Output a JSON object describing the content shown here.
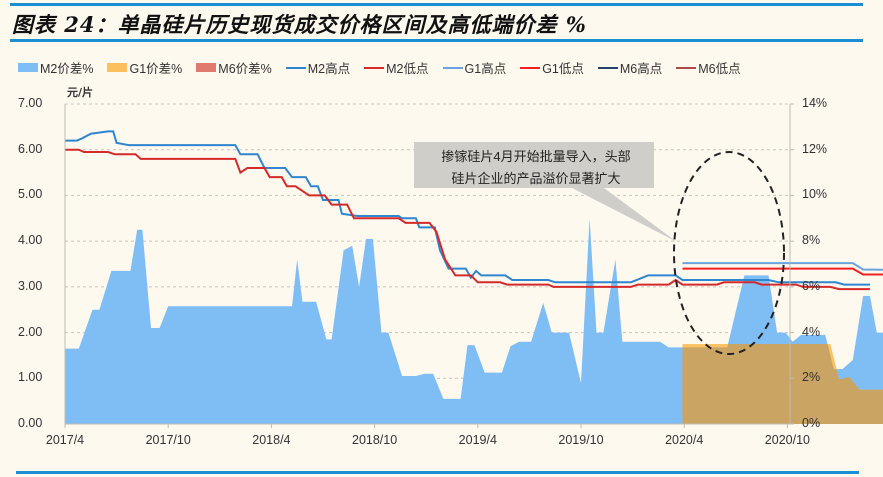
{
  "title": "图表 24：单晶硅片历史现货成交价格区间及高低端价差 %",
  "unit_label": "元/片",
  "callout": {
    "line1": "掺镓硅片4月开始批量导入，头部",
    "line2": "硅片企业的产品溢价显著扩大"
  },
  "legend": [
    {
      "label": "M2价差%",
      "type": "area",
      "color": "#7fbdf5"
    },
    {
      "label": "G1价差%",
      "type": "area",
      "color": "#fbbf5e"
    },
    {
      "label": "M6价差%",
      "type": "area",
      "color": "#e07a6e"
    },
    {
      "label": "M2高点",
      "type": "line",
      "color": "#2f86d0"
    },
    {
      "label": "M2低点",
      "type": "line",
      "color": "#d42a2a"
    },
    {
      "label": "G1高点",
      "type": "line",
      "color": "#6aa3de"
    },
    {
      "label": "G1低点",
      "type": "line",
      "color": "#f51f1f"
    },
    {
      "label": "M6高点",
      "type": "line",
      "color": "#23436e"
    },
    {
      "label": "M6低点",
      "type": "line",
      "color": "#b04848"
    }
  ],
  "left_axis": [
    "7.00",
    "6.00",
    "5.00",
    "4.00",
    "3.00",
    "2.00",
    "1.00",
    "0.00"
  ],
  "right_axis": [
    "14%",
    "12%",
    "10%",
    "8%",
    "6%",
    "4%",
    "2%",
    "0%"
  ],
  "x_axis": [
    "2017/4",
    "2017/10",
    "2018/4",
    "2018/10",
    "2019/4",
    "2019/10",
    "2020/4",
    "2020/10"
  ],
  "chart_data": {
    "type": "line+area",
    "title": "单晶硅片历史现货成交价格区间及高低端价差 %",
    "ylabel_left": "元/片",
    "ylabel_right": "%",
    "ylim_left": [
      0,
      7
    ],
    "ylim_right": [
      0,
      14
    ],
    "grid": true,
    "legend_position": "top",
    "x_ticks": [
      "2017/4",
      "2017/10",
      "2018/4",
      "2018/10",
      "2019/4",
      "2019/10",
      "2020/4",
      "2020/10"
    ],
    "x_unit": "months since 2017/4",
    "series": [
      {
        "name": "M2高点",
        "axis": "left",
        "type": "line",
        "points": [
          [
            0,
            6.2
          ],
          [
            0.7,
            6.2
          ],
          [
            1,
            6.25
          ],
          [
            1.5,
            6.35
          ],
          [
            2.5,
            6.4
          ],
          [
            2.8,
            6.4
          ],
          [
            3,
            6.15
          ],
          [
            3.7,
            6.1
          ],
          [
            9.9,
            6.1
          ],
          [
            10.2,
            5.9
          ],
          [
            11.2,
            5.9
          ],
          [
            11.6,
            5.6
          ],
          [
            12.8,
            5.6
          ],
          [
            13.2,
            5.4
          ],
          [
            14,
            5.4
          ],
          [
            14.3,
            5.2
          ],
          [
            14.7,
            5.2
          ],
          [
            15,
            4.9
          ],
          [
            15.9,
            4.9
          ],
          [
            16.1,
            4.6
          ],
          [
            17,
            4.55
          ],
          [
            19.4,
            4.55
          ],
          [
            19.6,
            4.5
          ],
          [
            20.4,
            4.5
          ],
          [
            20.6,
            4.3
          ],
          [
            21.5,
            4.3
          ],
          [
            21.8,
            3.8
          ],
          [
            22.3,
            3.4
          ],
          [
            23.3,
            3.4
          ],
          [
            23.6,
            3.2
          ],
          [
            23.9,
            3.35
          ],
          [
            24.2,
            3.25
          ],
          [
            25.6,
            3.25
          ],
          [
            26,
            3.15
          ],
          [
            28.1,
            3.15
          ],
          [
            28.5,
            3.1
          ],
          [
            32.9,
            3.1
          ],
          [
            33.9,
            3.25
          ],
          [
            35.5,
            3.25
          ],
          [
            35.9,
            3.15
          ],
          [
            40.9,
            3.15
          ],
          [
            41.5,
            3.1
          ],
          [
            44.8,
            3.1
          ],
          [
            45.3,
            3.05
          ],
          [
            46.8,
            3.05
          ]
        ]
      },
      {
        "name": "M2低点",
        "axis": "left",
        "type": "line",
        "points": [
          [
            0,
            6.0
          ],
          [
            0.8,
            6.0
          ],
          [
            1.1,
            5.95
          ],
          [
            2.5,
            5.95
          ],
          [
            2.9,
            5.9
          ],
          [
            4.1,
            5.9
          ],
          [
            4.4,
            5.8
          ],
          [
            9.9,
            5.8
          ],
          [
            10.2,
            5.5
          ],
          [
            10.6,
            5.6
          ],
          [
            11.6,
            5.6
          ],
          [
            11.9,
            5.4
          ],
          [
            12.6,
            5.4
          ],
          [
            12.9,
            5.2
          ],
          [
            13.4,
            5.2
          ],
          [
            13.8,
            5.1
          ],
          [
            14.2,
            5.0
          ],
          [
            15.1,
            5.0
          ],
          [
            15.5,
            4.8
          ],
          [
            16.4,
            4.8
          ],
          [
            16.8,
            4.5
          ],
          [
            19.4,
            4.5
          ],
          [
            19.8,
            4.4
          ],
          [
            21.2,
            4.4
          ],
          [
            21.6,
            4.2
          ],
          [
            22.1,
            3.6
          ],
          [
            22.7,
            3.25
          ],
          [
            23.6,
            3.25
          ],
          [
            24,
            3.1
          ],
          [
            25.3,
            3.1
          ],
          [
            25.7,
            3.05
          ],
          [
            28.1,
            3.05
          ],
          [
            28.4,
            3.0
          ],
          [
            32.9,
            3.0
          ],
          [
            33.3,
            3.05
          ],
          [
            35.1,
            3.05
          ],
          [
            35.5,
            3.15
          ],
          [
            35.9,
            3.05
          ],
          [
            37.9,
            3.05
          ],
          [
            38.3,
            3.1
          ],
          [
            40.1,
            3.1
          ],
          [
            40.5,
            3.05
          ],
          [
            42.5,
            3.05
          ],
          [
            42.9,
            3.0
          ],
          [
            44.5,
            3.0
          ],
          [
            45,
            2.95
          ],
          [
            46.8,
            2.95
          ]
        ]
      },
      {
        "name": "G1高点",
        "axis": "left",
        "type": "line",
        "points": [
          [
            35.9,
            3.52
          ],
          [
            45.8,
            3.52
          ],
          [
            46.4,
            3.38
          ],
          [
            48,
            3.37
          ],
          [
            58.5,
            3.36
          ],
          [
            59,
            3.3
          ],
          [
            59.6,
            3.2
          ],
          [
            60.2,
            2.9
          ],
          [
            61,
            2.8
          ],
          [
            62.2,
            2.8
          ],
          [
            62.8,
            2.7
          ],
          [
            64.1,
            2.7
          ],
          [
            64.6,
            2.6
          ],
          [
            66.5,
            2.6
          ],
          [
            67.5,
            2.9
          ],
          [
            68.1,
            2.95
          ],
          [
            68.6,
            3.05
          ],
          [
            69.2,
            3.1
          ],
          [
            71.4,
            3.1
          ]
        ]
      },
      {
        "name": "G1低点",
        "axis": "left",
        "type": "line",
        "points": [
          [
            35.9,
            3.4
          ],
          [
            45.8,
            3.4
          ],
          [
            46.4,
            3.27
          ],
          [
            58.5,
            3.26
          ],
          [
            59,
            3.15
          ],
          [
            59.6,
            3.0
          ],
          [
            60.3,
            2.7
          ],
          [
            61.2,
            2.65
          ],
          [
            62.2,
            2.55
          ],
          [
            62.8,
            2.45
          ],
          [
            64.1,
            2.45
          ],
          [
            64.6,
            2.35
          ],
          [
            66.5,
            2.35
          ],
          [
            67.2,
            2.7
          ],
          [
            68.1,
            2.8
          ],
          [
            68.6,
            2.85
          ],
          [
            69.2,
            3.0
          ],
          [
            71.4,
            3.0
          ]
        ]
      },
      {
        "name": "M6高点",
        "axis": "left",
        "type": "line",
        "points": [
          [
            61.3,
            2.9
          ],
          [
            62,
            2.75
          ],
          [
            62.8,
            2.7
          ],
          [
            63.3,
            2.6
          ],
          [
            64.6,
            2.6
          ],
          [
            65.1,
            2.5
          ],
          [
            66.6,
            2.5
          ],
          [
            67.5,
            2.95
          ],
          [
            68.1,
            3.0
          ],
          [
            68.7,
            3.2
          ],
          [
            69.2,
            3.22
          ],
          [
            71.4,
            3.22
          ]
        ]
      },
      {
        "name": "M6低点",
        "axis": "left",
        "type": "line",
        "points": [
          [
            61.3,
            2.8
          ],
          [
            62,
            2.7
          ],
          [
            62.8,
            2.65
          ],
          [
            63.3,
            2.52
          ],
          [
            64.6,
            2.52
          ],
          [
            65.1,
            2.45
          ],
          [
            66.6,
            2.45
          ],
          [
            67.3,
            2.8
          ],
          [
            68.1,
            2.9
          ],
          [
            68.6,
            3.1
          ],
          [
            69.2,
            3.15
          ],
          [
            71.4,
            3.15
          ]
        ]
      },
      {
        "name": "M2价差%",
        "axis": "right",
        "type": "area",
        "points": [
          [
            0,
            3.3
          ],
          [
            0.8,
            3.3
          ],
          [
            1.6,
            5.0
          ],
          [
            2,
            5.0
          ],
          [
            2.7,
            6.7
          ],
          [
            3.8,
            6.7
          ],
          [
            4.2,
            8.5
          ],
          [
            4.5,
            8.5
          ],
          [
            5,
            4.2
          ],
          [
            5.5,
            4.2
          ],
          [
            6,
            5.15
          ],
          [
            13.2,
            5.15
          ],
          [
            13.5,
            7.2
          ],
          [
            13.8,
            5.35
          ],
          [
            14.6,
            5.35
          ],
          [
            15.2,
            3.7
          ],
          [
            15.5,
            3.7
          ],
          [
            16.2,
            7.6
          ],
          [
            16.7,
            7.8
          ],
          [
            17.1,
            6.0
          ],
          [
            17.5,
            8.1
          ],
          [
            17.9,
            8.1
          ],
          [
            18.4,
            4.0
          ],
          [
            18.8,
            4.0
          ],
          [
            19.6,
            2.1
          ],
          [
            20.4,
            2.1
          ],
          [
            20.9,
            2.2
          ],
          [
            21.4,
            2.2
          ],
          [
            22,
            1.1
          ],
          [
            23,
            1.1
          ],
          [
            23.4,
            3.45
          ],
          [
            23.8,
            3.45
          ],
          [
            24.4,
            2.25
          ],
          [
            25.4,
            2.25
          ],
          [
            25.9,
            3.4
          ],
          [
            26.4,
            3.6
          ],
          [
            27.1,
            3.6
          ],
          [
            27.8,
            5.3
          ],
          [
            28.3,
            4.0
          ],
          [
            29.3,
            4.0
          ],
          [
            30,
            1.8
          ],
          [
            30.5,
            9.0
          ],
          [
            30.9,
            4.0
          ],
          [
            31.3,
            4.0
          ],
          [
            32,
            7.2
          ],
          [
            32.4,
            3.6
          ],
          [
            34.6,
            3.6
          ],
          [
            35.1,
            3.35
          ],
          [
            38.5,
            3.35
          ],
          [
            39.5,
            6.5
          ],
          [
            40.9,
            6.5
          ],
          [
            41.4,
            4.0
          ],
          [
            41.9,
            4.0
          ],
          [
            42.3,
            3.6
          ],
          [
            42.8,
            3.9
          ],
          [
            44.2,
            3.9
          ],
          [
            44.7,
            2.4
          ],
          [
            45.2,
            2.4
          ],
          [
            45.8,
            2.8
          ],
          [
            46.4,
            5.6
          ],
          [
            46.8,
            5.6
          ],
          [
            47.2,
            4.0
          ],
          [
            47.6,
            4.0
          ],
          [
            48.2,
            5.1
          ],
          [
            48.8,
            5.1
          ],
          [
            49.4,
            4.4
          ],
          [
            50.6,
            4.4
          ],
          [
            50.6,
            1.5
          ]
        ]
      },
      {
        "name": "G1价差%",
        "axis": "right",
        "type": "area",
        "points": [
          [
            35.9,
            3.5
          ],
          [
            44.5,
            3.5
          ],
          [
            45,
            1.95
          ],
          [
            45.6,
            2.05
          ],
          [
            46.2,
            1.5
          ],
          [
            47,
            1.5
          ],
          [
            50.6,
            1.5
          ],
          [
            50.6,
            0
          ],
          [
            51,
            2.4
          ],
          [
            59.8,
            2.4
          ],
          [
            60.5,
            2.5
          ],
          [
            61.2,
            11.6
          ],
          [
            61.6,
            6.0
          ],
          [
            62.1,
            8.4
          ],
          [
            62.8,
            8.5
          ],
          [
            63.3,
            8.95
          ],
          [
            63.8,
            8.95
          ],
          [
            64.2,
            6.8
          ],
          [
            66.6,
            6.8
          ],
          [
            67.3,
            7.05
          ],
          [
            69.2,
            7.05
          ],
          [
            69.4,
            3.5
          ],
          [
            69.9,
            0
          ],
          [
            70.2,
            2.6
          ],
          [
            72.2,
            2.6
          ],
          [
            72.9,
            7.3
          ],
          [
            73.2,
            7.3
          ],
          [
            73.5,
            2.6
          ],
          [
            75.2,
            2.6
          ],
          [
            75.2,
            0
          ]
        ]
      },
      {
        "name": "M6价差%",
        "axis": "right",
        "type": "area",
        "points": [
          [
            62.8,
            0
          ],
          [
            62.8,
            7.5
          ],
          [
            63.5,
            3.4
          ],
          [
            65.3,
            3.5
          ],
          [
            66.8,
            3.6
          ],
          [
            67.3,
            3.7
          ],
          [
            69.2,
            3.7
          ],
          [
            69.6,
            11.0
          ],
          [
            70.2,
            2.0
          ],
          [
            70.6,
            7.0
          ],
          [
            71.1,
            6.9
          ],
          [
            71.7,
            2.6
          ],
          [
            72.6,
            2.6
          ],
          [
            73.3,
            1.5
          ],
          [
            75.2,
            1.5
          ],
          [
            75.2,
            0
          ]
        ]
      }
    ],
    "annotations": [
      {
        "type": "callout",
        "text": "掺镓硅片4月开始批量导入，头部硅片企业的产品溢价显著扩大"
      },
      {
        "type": "dashed-ellipse",
        "region": "2020/4 – 2020/10"
      }
    ]
  }
}
